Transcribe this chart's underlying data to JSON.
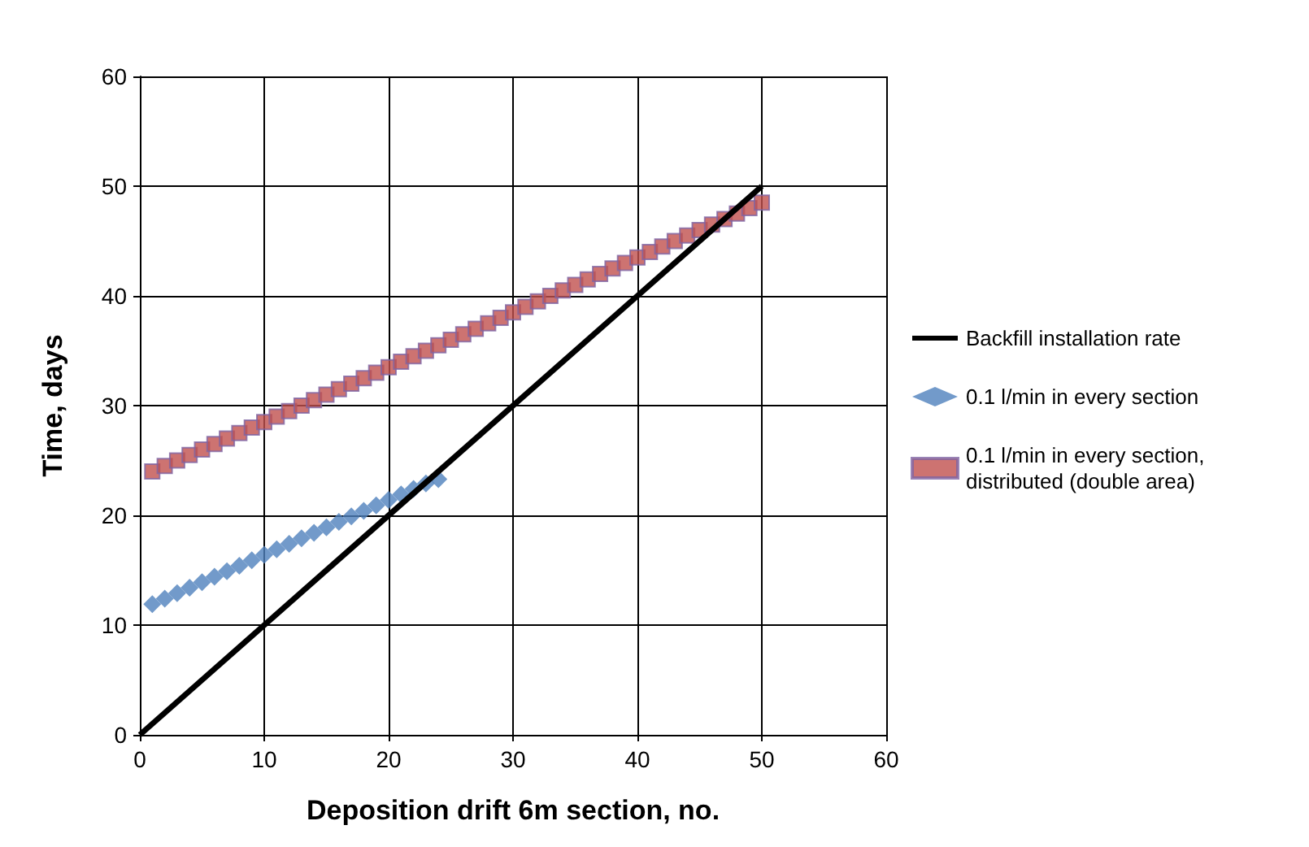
{
  "chart_data": {
    "type": "scatter",
    "xlabel": "Deposition drift 6m section, no.",
    "ylabel": "Time, days",
    "xlim": [
      0,
      60
    ],
    "xticks": [
      0,
      10,
      20,
      30,
      40,
      50,
      60
    ],
    "ylim": [
      0,
      60
    ],
    "yticks": [
      0,
      10,
      20,
      30,
      40,
      50,
      60
    ],
    "grid": true,
    "legend": "right",
    "series": [
      {
        "name": "Backfill installation rate",
        "type": "line",
        "color": "#000000",
        "marker": "none",
        "x": [
          0,
          50
        ],
        "values": [
          0,
          50
        ]
      },
      {
        "name": "0.1 l/min in every section",
        "color": "#4f81bd",
        "marker": "diamond",
        "x": [
          1,
          2,
          3,
          4,
          5,
          6,
          7,
          8,
          9,
          10,
          11,
          12,
          13,
          14,
          15,
          16,
          17,
          18,
          19,
          20,
          21,
          22,
          23,
          24
        ],
        "values": [
          11.9,
          12.4,
          12.9,
          13.4,
          13.9,
          14.4,
          14.9,
          15.4,
          15.9,
          16.4,
          16.9,
          17.4,
          17.9,
          18.4,
          18.9,
          19.4,
          19.9,
          20.4,
          20.9,
          21.4,
          21.9,
          22.4,
          22.9,
          23.3
        ]
      },
      {
        "name": "0.1 l/min in every section,\ndistributed (double area)",
        "color": "#c0504d",
        "marker": "square",
        "x": [
          1,
          2,
          3,
          4,
          5,
          6,
          7,
          8,
          9,
          10,
          11,
          12,
          13,
          14,
          15,
          16,
          17,
          18,
          19,
          20,
          21,
          22,
          23,
          24,
          25,
          26,
          27,
          28,
          29,
          30,
          31,
          32,
          33,
          34,
          35,
          36,
          37,
          38,
          39,
          40,
          41,
          42,
          43,
          44,
          45,
          46,
          47,
          48,
          49,
          50
        ],
        "values": [
          24,
          24.5,
          25,
          25.5,
          26,
          26.5,
          27,
          27.5,
          28,
          28.5,
          29,
          29.5,
          30,
          30.5,
          31,
          31.5,
          32,
          32.5,
          33,
          33.5,
          34,
          34.5,
          35,
          35.5,
          36,
          36.5,
          37,
          37.5,
          38,
          38.5,
          39,
          39.5,
          40,
          40.5,
          41,
          41.5,
          42,
          42.5,
          43,
          43.5,
          44,
          44.5,
          45,
          45.5,
          46,
          46.5,
          47,
          47.5,
          48,
          48.5
        ]
      }
    ]
  }
}
